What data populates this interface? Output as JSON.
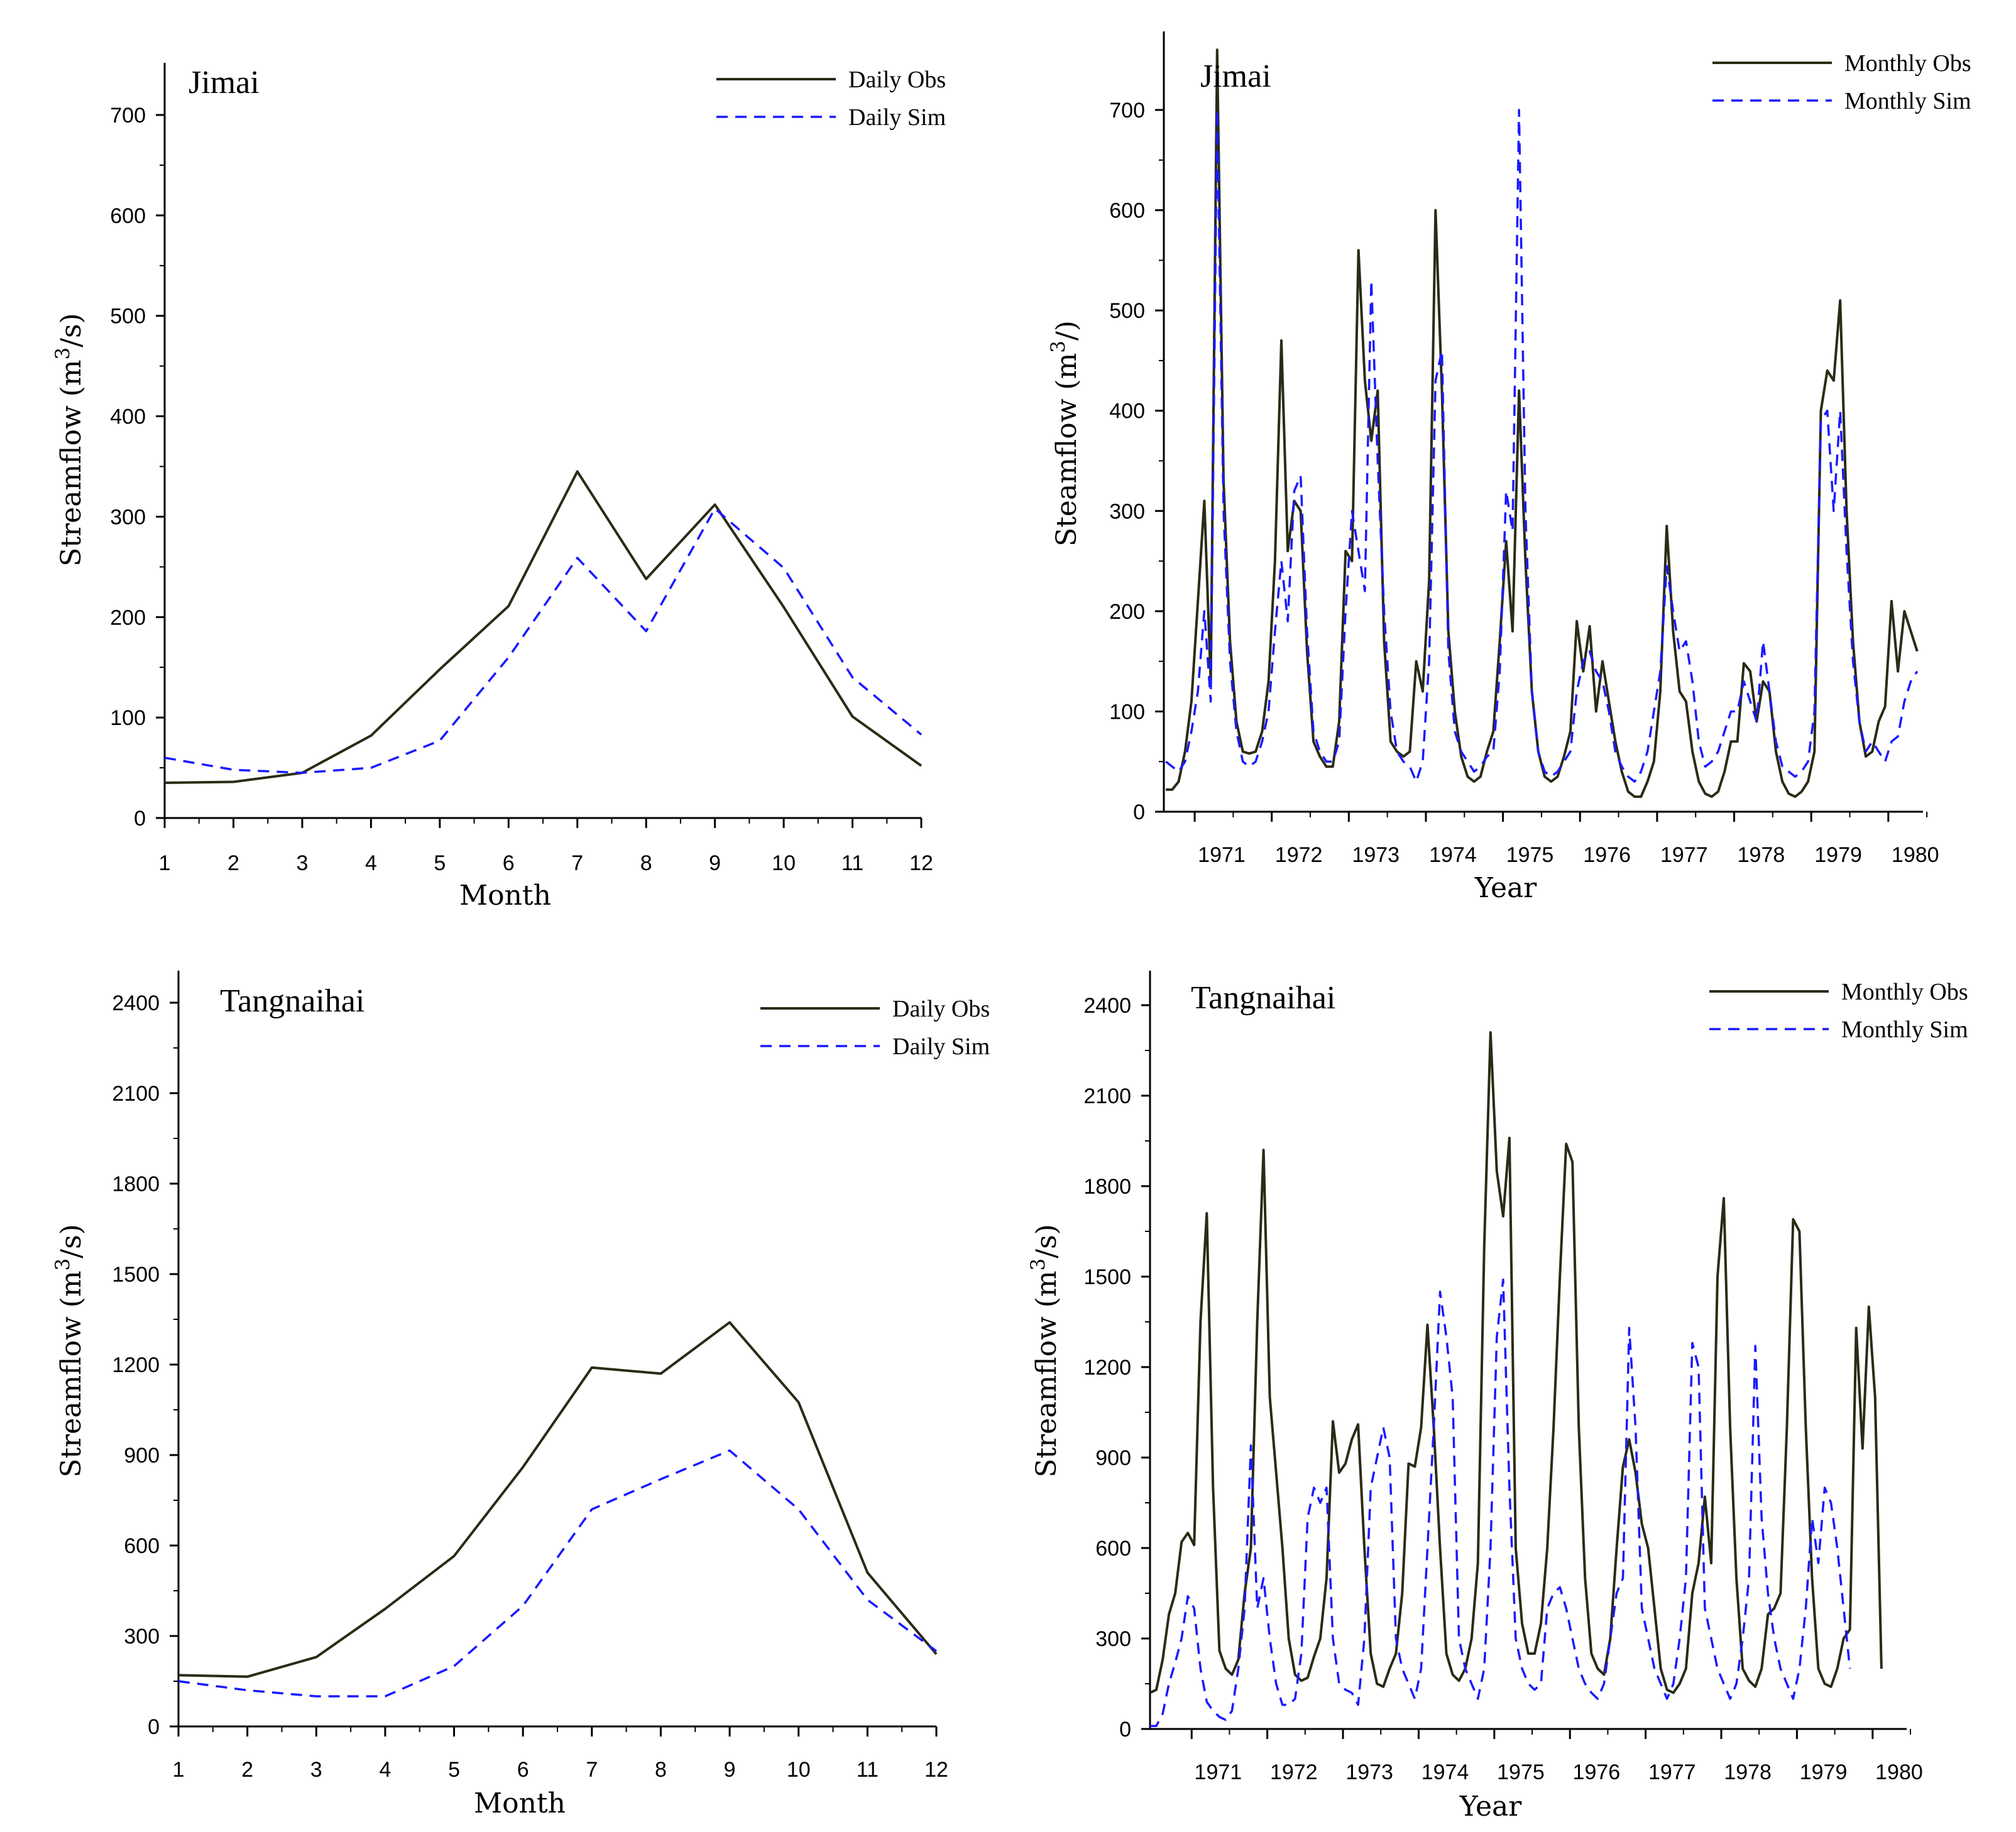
{
  "colors": {
    "obs": "#2b2b16",
    "sim": "#1a1aff",
    "axis": "#000000"
  },
  "panels": [
    {
      "title": "Jimai",
      "xlabel": "Month",
      "ylabel_html": "Streamflow (m<tspan baseline-shift=\"super\" font-size=\"70%\">3</tspan>/s)",
      "ylabel_plain": "Streamflow (m3/s)",
      "legend": [
        "Daily Obs",
        "Daily Sim"
      ],
      "yticks": [
        0,
        100,
        200,
        300,
        400,
        500,
        600,
        700
      ],
      "ytick_labels": [
        "0",
        "100",
        "200",
        "300",
        "400",
        "500",
        "600",
        "700"
      ],
      "xtick_labels": [
        "1",
        "2",
        "3",
        "4",
        "5",
        "6",
        "7",
        "8",
        "9",
        "10",
        "11",
        "12"
      ]
    },
    {
      "title": "Jimai",
      "xlabel": "Year",
      "ylabel_html": "Steamflow (m<tspan baseline-shift=\"super\" font-size=\"70%\">3</tspan>/)",
      "ylabel_plain": "Steamflow (m3/)",
      "legend": [
        "Monthly Obs",
        "Monthly Sim"
      ],
      "yticks": [
        0,
        100,
        200,
        300,
        400,
        500,
        600,
        700
      ],
      "ytick_labels": [
        "0",
        "100",
        "200",
        "300",
        "400",
        "500",
        "600",
        "700"
      ],
      "xtick_labels": [
        "1971",
        "1972",
        "1973",
        "1974",
        "1975",
        "1976",
        "1977",
        "1978",
        "1979",
        "1980"
      ]
    },
    {
      "title": "Tangnaihai",
      "xlabel": "Month",
      "ylabel_html": "Streamflow (m<tspan baseline-shift=\"super\" font-size=\"70%\">3</tspan>/s)",
      "ylabel_plain": "Streamflow (m3/s)",
      "legend": [
        "Daily Obs",
        "Daily Sim"
      ],
      "yticks": [
        0,
        300,
        600,
        900,
        1200,
        1500,
        1800,
        2100,
        2400
      ],
      "ytick_labels": [
        "0",
        "300",
        "600",
        "900",
        "1200",
        "1500",
        "1800",
        "2100",
        "2400"
      ],
      "xtick_labels": [
        "1",
        "2",
        "3",
        "4",
        "5",
        "6",
        "7",
        "8",
        "9",
        "10",
        "11",
        "12"
      ]
    },
    {
      "title": "Tangnaihai",
      "xlabel": "Year",
      "ylabel_html": "Streamflow (m<tspan baseline-shift=\"super\" font-size=\"70%\">3</tspan>/s)",
      "ylabel_plain": "Streamflow (m3/s)",
      "legend": [
        "Monthly Obs",
        "Monthly Sim"
      ],
      "yticks": [
        0,
        300,
        600,
        900,
        1200,
        1500,
        1800,
        2100,
        2400
      ],
      "ytick_labels": [
        "0",
        "300",
        "600",
        "900",
        "1200",
        "1500",
        "1800",
        "2100",
        "2400"
      ],
      "xtick_labels": [
        "1971",
        "1972",
        "1973",
        "1974",
        "1975",
        "1976",
        "1977",
        "1978",
        "1979",
        "1980"
      ]
    }
  ],
  "chart_data": [
    {
      "type": "line",
      "title": "Jimai",
      "xlabel": "Month",
      "ylabel": "Streamflow (m3/s)",
      "x": [
        1,
        2,
        3,
        4,
        5,
        6,
        7,
        8,
        9,
        10,
        11,
        12
      ],
      "xlim": [
        1,
        12
      ],
      "ylim": [
        0,
        750
      ],
      "grid": false,
      "legend_position": "top-right",
      "series": [
        {
          "name": "Daily Obs",
          "style": "solid",
          "values": [
            35,
            36,
            45,
            82,
            148,
            211,
            345,
            238,
            312,
            210,
            101,
            52
          ]
        },
        {
          "name": "Daily Sim",
          "style": "dashed",
          "values": [
            60,
            48,
            45,
            50,
            77,
            160,
            259,
            186,
            308,
            249,
            140,
            83
          ]
        }
      ]
    },
    {
      "type": "line",
      "title": "Jimai",
      "xlabel": "Year",
      "ylabel": "Steamflow (m3/)",
      "x_start": 1970.625,
      "x_step": 0.0833333,
      "xlim": [
        1970.6,
        1980.45
      ],
      "ylim": [
        0,
        760
      ],
      "grid": false,
      "legend_position": "top-right",
      "series": [
        {
          "name": "Monthly Obs",
          "style": "solid",
          "values": [
            22,
            22,
            30,
            60,
            110,
            210,
            310,
            130,
            760,
            330,
            170,
            90,
            60,
            58,
            60,
            80,
            130,
            250,
            470,
            260,
            310,
            300,
            160,
            70,
            55,
            45,
            45,
            90,
            260,
            250,
            560,
            430,
            370,
            420,
            170,
            70,
            60,
            55,
            60,
            150,
            120,
            230,
            600,
            420,
            180,
            100,
            55,
            35,
            30,
            35,
            60,
            80,
            170,
            270,
            180,
            420,
            250,
            120,
            60,
            35,
            30,
            35,
            55,
            80,
            190,
            140,
            185,
            100,
            150,
            110,
            70,
            40,
            20,
            15,
            15,
            30,
            50,
            120,
            285,
            180,
            120,
            110,
            60,
            30,
            18,
            15,
            20,
            40,
            70,
            70,
            148,
            140,
            90,
            130,
            120,
            60,
            30,
            18,
            15,
            20,
            30,
            60,
            400,
            440,
            430,
            510,
            300,
            170,
            90,
            55,
            60,
            90,
            105,
            210,
            140,
            200,
            180,
            160,
            100,
            60,
            30
          ]
        },
        {
          "name": "Monthly Sim",
          "style": "dashed",
          "values": [
            50,
            45,
            40,
            50,
            80,
            120,
            200,
            110,
            700,
            300,
            150,
            80,
            50,
            45,
            50,
            70,
            100,
            180,
            250,
            190,
            320,
            335,
            180,
            80,
            60,
            50,
            50,
            70,
            200,
            300,
            260,
            220,
            530,
            350,
            200,
            100,
            60,
            50,
            45,
            30,
            50,
            150,
            430,
            460,
            160,
            80,
            60,
            50,
            40,
            45,
            55,
            60,
            140,
            320,
            280,
            700,
            300,
            120,
            60,
            40,
            35,
            40,
            50,
            60,
            120,
            150,
            160,
            140,
            130,
            100,
            60,
            45,
            35,
            30,
            40,
            60,
            100,
            140,
            245,
            200,
            160,
            170,
            130,
            70,
            45,
            50,
            60,
            80,
            100,
            100,
            130,
            110,
            90,
            170,
            120,
            70,
            45,
            40,
            35,
            40,
            50,
            100,
            390,
            400,
            300,
            400,
            260,
            150,
            90,
            60,
            70,
            60,
            50,
            70,
            75,
            110,
            130,
            140,
            170,
            150,
            70
          ]
        }
      ]
    },
    {
      "type": "line",
      "title": "Tangnaihai",
      "xlabel": "Month",
      "ylabel": "Streamflow (m3/s)",
      "x": [
        1,
        2,
        3,
        4,
        5,
        6,
        7,
        8,
        9,
        10,
        11,
        12
      ],
      "xlim": [
        1,
        12
      ],
      "ylim": [
        0,
        2500
      ],
      "grid": false,
      "legend_position": "top-right",
      "series": [
        {
          "name": "Daily Obs",
          "style": "solid",
          "values": [
            170,
            165,
            230,
            390,
            565,
            860,
            1190,
            1170,
            1340,
            1075,
            510,
            240
          ]
        },
        {
          "name": "Daily Sim",
          "style": "dashed",
          "values": [
            150,
            120,
            100,
            100,
            200,
            400,
            720,
            820,
            915,
            720,
            420,
            250
          ]
        }
      ]
    },
    {
      "type": "line",
      "title": "Tangnaihai",
      "xlabel": "Year",
      "ylabel": "Streamflow (m3/s)",
      "x_start": 1970.45,
      "x_step": 0.0833333,
      "xlim": [
        1970.45,
        1980.45
      ],
      "ylim": [
        0,
        2500
      ],
      "grid": false,
      "legend_position": "top-right",
      "series": [
        {
          "name": "Monthly Obs",
          "style": "solid",
          "values": [
            120,
            130,
            230,
            380,
            450,
            620,
            650,
            610,
            1350,
            1710,
            800,
            260,
            200,
            180,
            230,
            450,
            600,
            1350,
            1920,
            1100,
            850,
            600,
            300,
            180,
            160,
            170,
            240,
            300,
            500,
            1020,
            850,
            880,
            960,
            1010,
            600,
            250,
            150,
            140,
            200,
            250,
            450,
            880,
            870,
            1000,
            1340,
            1000,
            600,
            250,
            180,
            160,
            200,
            300,
            550,
            1600,
            2310,
            1850,
            1700,
            1960,
            600,
            350,
            250,
            250,
            350,
            600,
            1000,
            1500,
            1940,
            1880,
            1000,
            500,
            250,
            200,
            180,
            300,
            600,
            870,
            960,
            850,
            680,
            600,
            400,
            200,
            130,
            120,
            150,
            200,
            450,
            550,
            770,
            550,
            1500,
            1760,
            1000,
            500,
            200,
            160,
            140,
            200,
            380,
            400,
            450,
            1000,
            1690,
            1650,
            1000,
            500,
            200,
            150,
            140,
            200,
            300,
            330,
            1330,
            930,
            1400,
            1100,
            200
          ]
        },
        {
          "name": "Monthly Sim",
          "style": "dashed",
          "values": [
            10,
            10,
            50,
            150,
            220,
            300,
            440,
            400,
            200,
            90,
            60,
            40,
            30,
            60,
            200,
            400,
            940,
            400,
            500,
            300,
            150,
            80,
            80,
            100,
            250,
            700,
            800,
            750,
            800,
            300,
            150,
            130,
            120,
            80,
            300,
            800,
            900,
            1000,
            900,
            300,
            200,
            150,
            100,
            200,
            600,
            1000,
            1450,
            1300,
            1100,
            300,
            200,
            150,
            100,
            200,
            600,
            1300,
            1490,
            800,
            300,
            200,
            150,
            130,
            150,
            400,
            450,
            470,
            400,
            300,
            200,
            150,
            120,
            100,
            150,
            300,
            450,
            500,
            1330,
            1000,
            400,
            300,
            200,
            150,
            100,
            150,
            300,
            500,
            1280,
            1200,
            400,
            300,
            200,
            150,
            100,
            150,
            300,
            500,
            1270,
            700,
            450,
            300,
            200,
            150,
            100,
            200,
            400,
            700,
            550,
            800,
            750,
            600,
            400,
            200
          ]
        }
      ]
    }
  ]
}
